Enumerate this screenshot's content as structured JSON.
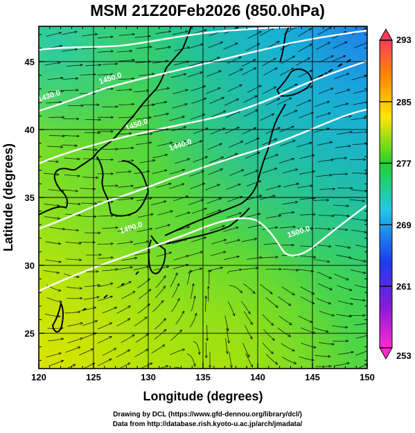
{
  "title": "MSM 21Z20Feb2026 (850.0hPa)",
  "x_axis": {
    "label": "Longitude (degrees)",
    "ticks": [
      "120",
      "125",
      "130",
      "135",
      "140",
      "145",
      "150"
    ],
    "range": [
      120,
      150
    ]
  },
  "y_axis": {
    "label": "Latitude  (degrees)",
    "ticks": [
      "25",
      "30",
      "35",
      "40",
      "45"
    ],
    "range": [
      22.4,
      47.6
    ]
  },
  "colorbar": {
    "ticks": [
      "293",
      "285",
      "277",
      "269",
      "261",
      "253"
    ],
    "range": [
      253,
      293
    ],
    "colors": [
      "#ff3c5a",
      "#ff8a00",
      "#ffe600",
      "#22d22a",
      "#20c8e8",
      "#1a3cf0",
      "#8a1ad8",
      "#ff2ad2"
    ]
  },
  "contour_labels": [
    {
      "text": "1450.0",
      "lon": 126.6,
      "lat": 43.6
    },
    {
      "text": "1430.0",
      "lon": 121.0,
      "lat": 42.3
    },
    {
      "text": "1450.0",
      "lon": 129.0,
      "lat": 40.2
    },
    {
      "text": "1440.0",
      "lon": 133.0,
      "lat": 38.7
    },
    {
      "text": "1490.0",
      "lon": 128.5,
      "lat": 32.6
    },
    {
      "text": "1500.0",
      "lon": 143.8,
      "lat": 32.3
    }
  ],
  "credits": [
    "Drawing by DCL (https://www.gfd-dennou.org/library/dcl/)",
    "Data from http://database.rish.kyoto-u.ac.jp/arch/jmadata/"
  ]
}
